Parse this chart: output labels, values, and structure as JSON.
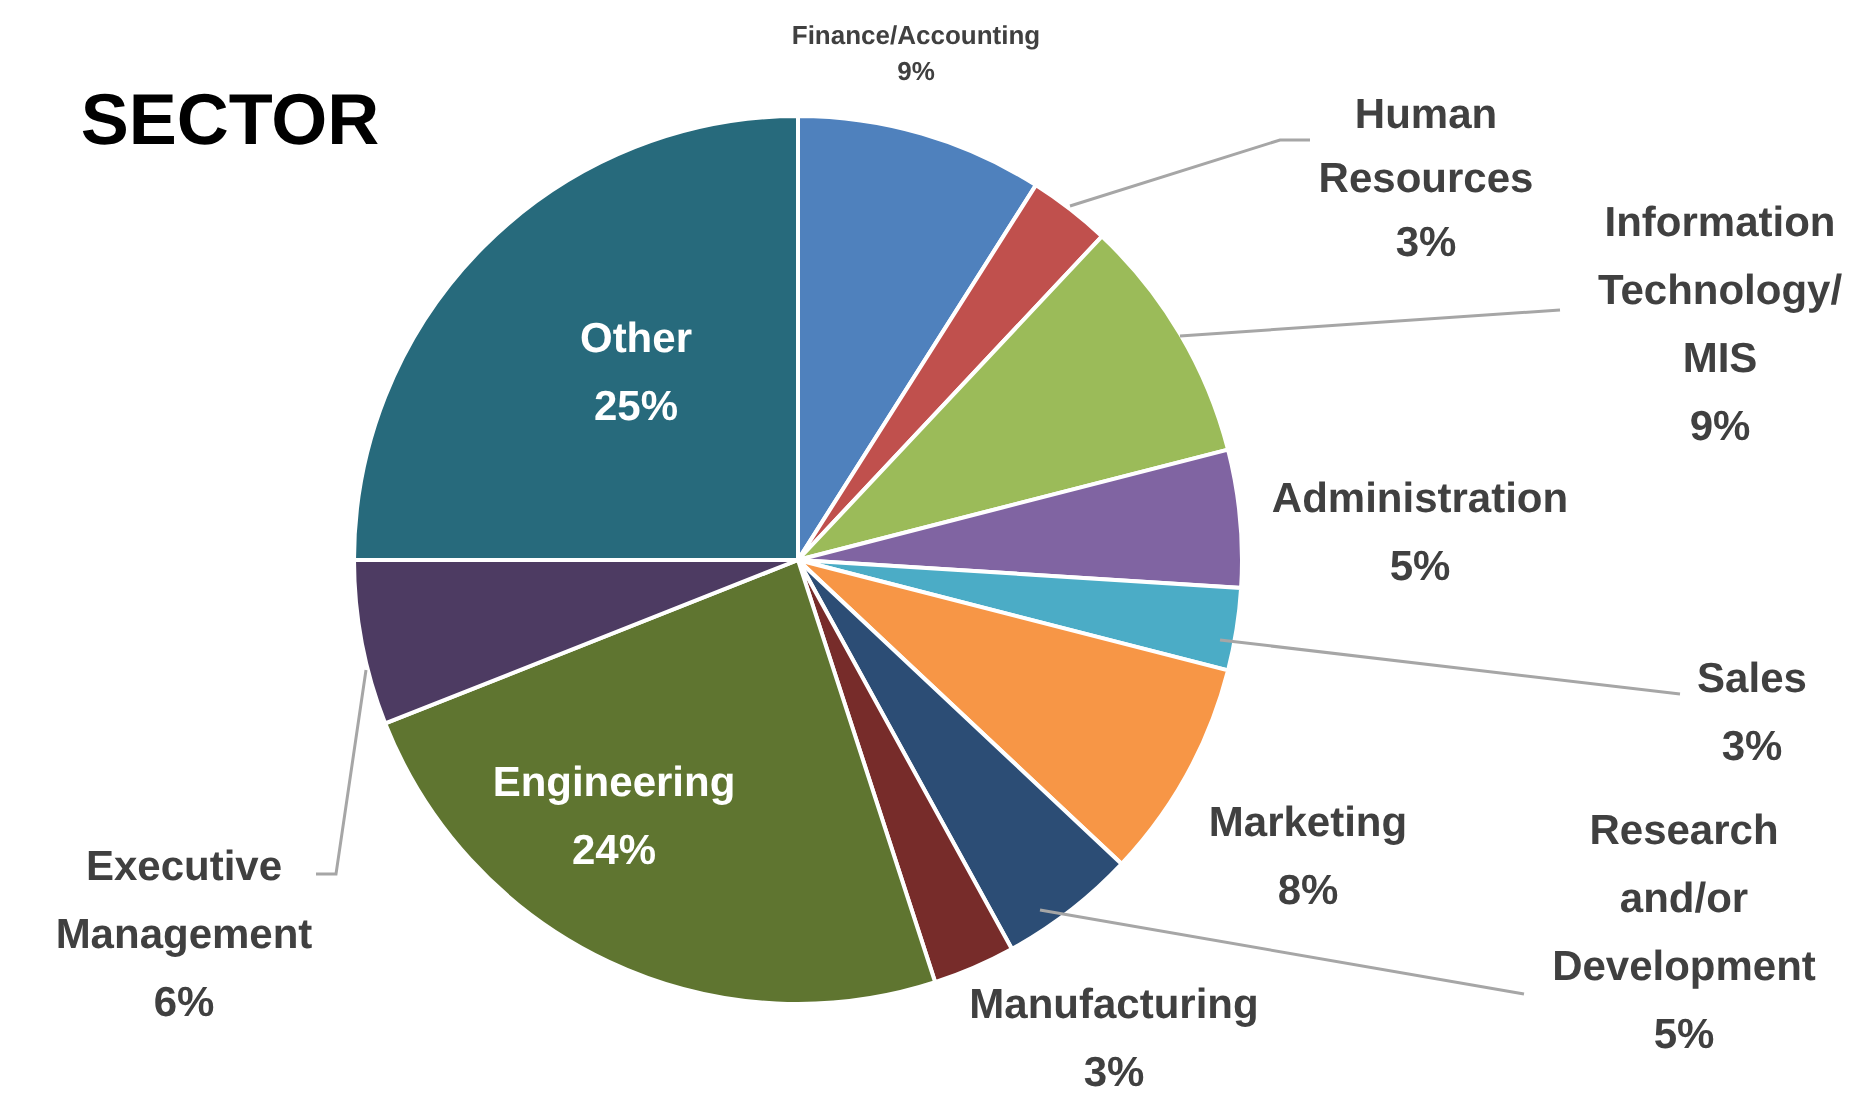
{
  "chart_data": {
    "type": "pie",
    "title": "SECTOR",
    "categories": [
      "Finance/Accounting",
      "Human Resources",
      "Information Technology/MIS",
      "Administration",
      "Sales",
      "Marketing",
      "Research and/or Development",
      "Manufacturing",
      "Engineering",
      "Executive Management",
      "Other"
    ],
    "values": [
      9,
      3,
      9,
      5,
      3,
      8,
      5,
      3,
      24,
      6,
      25
    ],
    "value_labels": [
      "9%",
      "3%",
      "9%",
      "5%",
      "3%",
      "8%",
      "5%",
      "3%",
      "24%",
      "6%",
      "25%"
    ],
    "colors": [
      "#4f81bd",
      "#c0504d",
      "#9bbb59",
      "#8064a2",
      "#4bacc6",
      "#f79646",
      "#2c4d75",
      "#772c2a",
      "#5f7530",
      "#4d3b62",
      "#276a7c"
    ]
  }
}
